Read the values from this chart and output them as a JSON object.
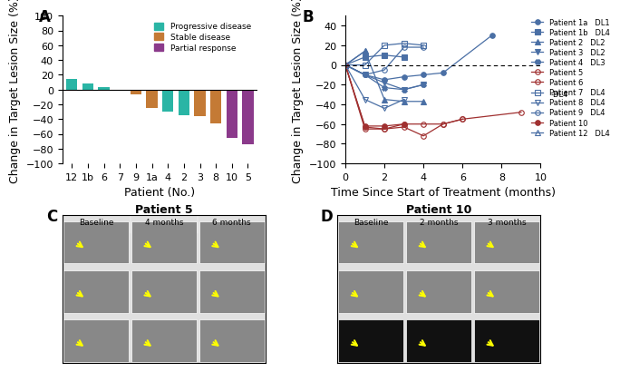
{
  "panel_A": {
    "patients": [
      "12",
      "1b",
      "6",
      "7",
      "9",
      "1a",
      "4",
      "2",
      "3",
      "8",
      "10",
      "5"
    ],
    "values": [
      14,
      8,
      3,
      0,
      -7,
      -25,
      -30,
      -35,
      -36,
      -46,
      -66,
      -74
    ],
    "colors": [
      "#2ab5a5",
      "#2ab5a5",
      "#2ab5a5",
      "#2ab5a5",
      "#c47a35",
      "#c47a35",
      "#2ab5a5",
      "#2ab5a5",
      "#c47a35",
      "#c47a35",
      "#8b3a8b",
      "#8b3a8b"
    ],
    "ylabel": "Change in Target Lesion Size (%)",
    "xlabel": "Patient (No.)",
    "ylim": [
      -100,
      100
    ],
    "yticks": [
      -100,
      -80,
      -60,
      -40,
      -20,
      0,
      20,
      40,
      60,
      80,
      100
    ],
    "legend_labels": [
      "Progressive disease",
      "Stable disease",
      "Partial response"
    ],
    "legend_colors": [
      "#2ab5a5",
      "#c47a35",
      "#8b3a8b"
    ]
  },
  "panel_B": {
    "patients": {
      "Patient 1a": {
        "times": [
          0,
          1,
          2,
          3,
          4,
          5,
          7.5
        ],
        "values": [
          0,
          -10,
          -15,
          -12,
          -10,
          -8,
          30
        ],
        "color": "#4a6fa5",
        "marker": "o",
        "fill": true,
        "dl": "DL1"
      },
      "Patient 1b": {
        "times": [
          0,
          1,
          2,
          3
        ],
        "values": [
          0,
          8,
          10,
          8
        ],
        "color": "#4a6fa5",
        "marker": "s",
        "fill": true,
        "dl": "DL4"
      },
      "Patient 2": {
        "times": [
          0,
          1,
          2,
          3,
          4
        ],
        "values": [
          0,
          14,
          -35,
          -37,
          -37
        ],
        "color": "#4a6fa5",
        "marker": "^",
        "fill": true,
        "dl": "DL2"
      },
      "Patient 3": {
        "times": [
          0,
          1,
          2,
          3,
          4
        ],
        "values": [
          0,
          -10,
          -18,
          -25,
          -20
        ],
        "color": "#4a6fa5",
        "marker": "v",
        "fill": true,
        "dl": "DL2"
      },
      "Patient 4": {
        "times": [
          0,
          1,
          2,
          3,
          4
        ],
        "values": [
          0,
          -10,
          -23,
          -25,
          -20
        ],
        "color": "#4a6fa5",
        "marker": "X",
        "fill": true,
        "dl": "DL3"
      },
      "Patient 5": {
        "times": [
          0,
          1,
          2,
          3,
          4,
          5,
          6
        ],
        "values": [
          0,
          -63,
          -65,
          -60,
          -60,
          -60,
          -55
        ],
        "color": "#a03030",
        "marker": "o",
        "fill": false,
        "dl": ""
      },
      "Patient 6": {
        "times": [
          0,
          1,
          2,
          3,
          4,
          5,
          6,
          9
        ],
        "values": [
          0,
          -65,
          -65,
          -63,
          -72,
          -60,
          -55,
          -48
        ],
        "color": "#a03030",
        "marker": "o",
        "fill": false,
        "dl": ""
      },
      "Patient 7": {
        "times": [
          0,
          1,
          2,
          3,
          4
        ],
        "values": [
          0,
          0,
          20,
          22,
          20
        ],
        "color": "#4a6fa5",
        "marker": "s",
        "fill": false,
        "dl": "DL4"
      },
      "Patient 8": {
        "times": [
          0,
          1,
          2,
          3
        ],
        "values": [
          0,
          -35,
          -44,
          -35
        ],
        "color": "#4a6fa5",
        "marker": "v",
        "fill": false,
        "dl": "DL4"
      },
      "Patient 9": {
        "times": [
          0,
          1,
          2,
          3,
          4
        ],
        "values": [
          0,
          -10,
          -5,
          18,
          18
        ],
        "color": "#4a6fa5",
        "marker": "o",
        "fill": false,
        "dl": "DL4"
      },
      "Patient 10": {
        "times": [
          0,
          1,
          2,
          3
        ],
        "values": [
          0,
          -62,
          -62,
          -60
        ],
        "color": "#a03030",
        "marker": "o",
        "fill": true,
        "dl": ""
      },
      "Patient 12": {
        "times": [
          0,
          1
        ],
        "values": [
          0,
          14
        ],
        "color": "#4a6fa5",
        "marker": "^",
        "fill": false,
        "dl": "DL4"
      }
    },
    "ylabel": "Change in Target Lesion Size (%)",
    "xlabel": "Time Since Start of Treatment (months)",
    "ylim": [
      -100,
      50
    ],
    "xlim": [
      0,
      10
    ],
    "yticks": [
      -100,
      -80,
      -60,
      -40,
      -20,
      0,
      20,
      40
    ],
    "xticks": [
      0,
      2,
      4,
      6,
      8,
      10
    ]
  },
  "panel_C": {
    "title": "Patient 5",
    "timepoints": [
      "Baseline",
      "4 months",
      "6 months"
    ],
    "rows": 3,
    "cols": 3
  },
  "panel_D": {
    "title": "Patient 10",
    "timepoints": [
      "Baseline",
      "2 months",
      "3 months"
    ],
    "rows": 3,
    "cols": 3
  },
  "bg_color": "#ffffff",
  "label_fontsize": 9,
  "tick_fontsize": 8,
  "title_fontsize": 9
}
